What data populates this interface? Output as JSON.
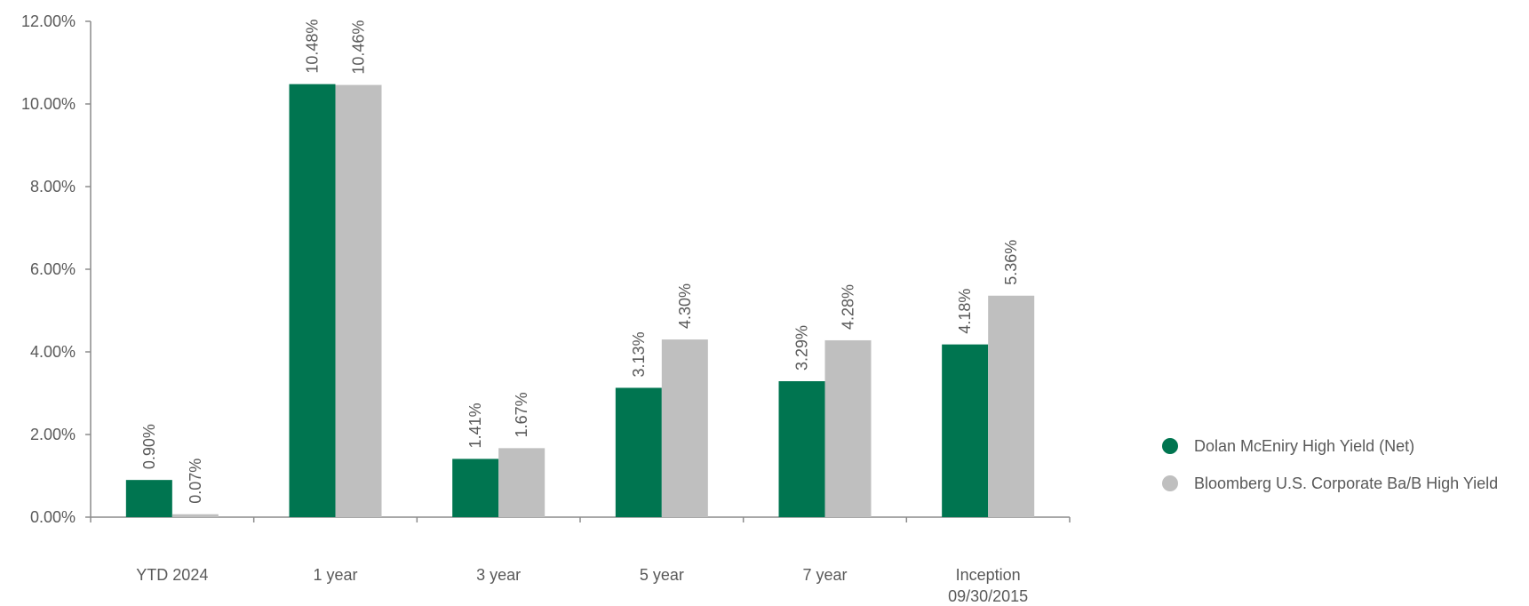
{
  "chart_data": {
    "type": "bar",
    "categories": [
      "YTD 2024",
      "1 year",
      "3 year",
      "5 year",
      "7 year",
      "Inception\n09/30/2015"
    ],
    "series": [
      {
        "name": "Dolan McEniry High Yield (Net)",
        "color": "#007550",
        "values": [
          0.9,
          10.48,
          1.41,
          3.13,
          3.29,
          4.18
        ],
        "labels": [
          "0.90%",
          "10.48%",
          "1.41%",
          "3.13%",
          "3.29%",
          "4.18%"
        ]
      },
      {
        "name": "Bloomberg U.S. Corporate Ba/B High Yield",
        "color": "#bfbfbf",
        "values": [
          0.07,
          10.46,
          1.67,
          4.3,
          4.28,
          5.36
        ],
        "labels": [
          "0.07%",
          "10.46%",
          "1.67%",
          "4.30%",
          "4.28%",
          "5.36%"
        ]
      }
    ],
    "ylim": [
      0,
      12
    ],
    "yticks": [
      0,
      2,
      4,
      6,
      8,
      10,
      12
    ],
    "ytick_labels": [
      "0.00%",
      "2.00%",
      "4.00%",
      "6.00%",
      "8.00%",
      "10.00%",
      "12.00%"
    ],
    "grid": false,
    "legend_position": "right"
  }
}
